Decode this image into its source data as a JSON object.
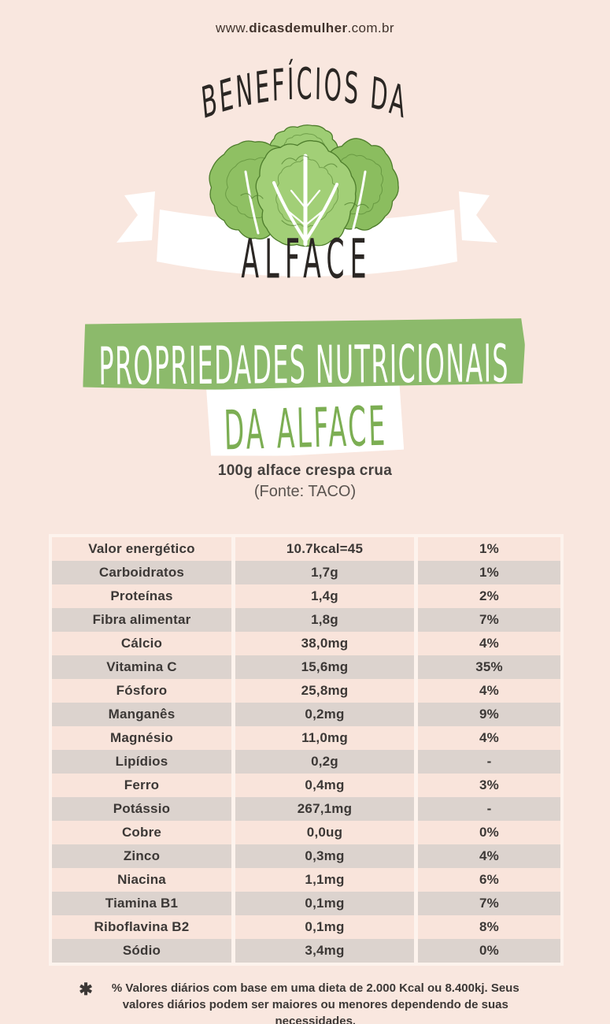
{
  "site": {
    "prefix": "www.",
    "brand": "dicasdemulher",
    "suffix": ".com.br"
  },
  "header": {
    "arc_title": "BENEFÍCIOS DA",
    "ribbon_label": "ALFACE"
  },
  "section_banner": {
    "line1": "PROPRIEDADES NUTRICIONAIS",
    "line2": "DA ALFACE"
  },
  "subtitle": {
    "portion": "100g alface crespa crua",
    "source": "(Fonte: TACO)"
  },
  "chart_data": {
    "type": "table",
    "title": "PROPRIEDADES NUTRICIONAIS DA ALFACE",
    "subtitle": "100g alface crespa crua",
    "source": "(Fonte: TACO)",
    "rows": [
      {
        "nutrient": "Valor energético",
        "amount": "10.7kcal=45",
        "daily_value": "1%"
      },
      {
        "nutrient": "Carboidratos",
        "amount": "1,7g",
        "daily_value": "1%"
      },
      {
        "nutrient": "Proteínas",
        "amount": "1,4g",
        "daily_value": "2%"
      },
      {
        "nutrient": "Fibra alimentar",
        "amount": "1,8g",
        "daily_value": "7%"
      },
      {
        "nutrient": "Cálcio",
        "amount": "38,0mg",
        "daily_value": "4%"
      },
      {
        "nutrient": "Vitamina C",
        "amount": "15,6mg",
        "daily_value": "35%"
      },
      {
        "nutrient": "Fósforo",
        "amount": "25,8mg",
        "daily_value": "4%"
      },
      {
        "nutrient": "Manganês",
        "amount": "0,2mg",
        "daily_value": "9%"
      },
      {
        "nutrient": "Magnésio",
        "amount": "11,0mg",
        "daily_value": "4%"
      },
      {
        "nutrient": "Lipídios",
        "amount": "0,2g",
        "daily_value": "-"
      },
      {
        "nutrient": "Ferro",
        "amount": "0,4mg",
        "daily_value": "3%"
      },
      {
        "nutrient": "Potássio",
        "amount": "267,1mg",
        "daily_value": "-"
      },
      {
        "nutrient": "Cobre",
        "amount": "0,0ug",
        "daily_value": "0%"
      },
      {
        "nutrient": "Zinco",
        "amount": "0,3mg",
        "daily_value": "4%"
      },
      {
        "nutrient": "Niacina",
        "amount": "1,1mg",
        "daily_value": "6%"
      },
      {
        "nutrient": "Tiamina B1",
        "amount": "0,1mg",
        "daily_value": "7%"
      },
      {
        "nutrient": "Riboflavina B2",
        "amount": "0,1mg",
        "daily_value": "8%"
      },
      {
        "nutrient": "Sódio",
        "amount": "3,4mg",
        "daily_value": "0%"
      }
    ]
  },
  "footnote": {
    "marker": "✱",
    "text": "% Valores diários com base em uma dieta de 2.000 Kcal ou 8.400kj. Seus valores diários podem ser maiores ou menores dependendo de suas necessidades."
  },
  "colors": {
    "background": "#f9e7df",
    "banner_green": "#8cba6b",
    "handwriting_green": "#7cae53",
    "ink": "#2b2724",
    "text_dark": "#3c3836",
    "row_light": "#f9e4db",
    "row_gray": "#dcd3ce",
    "table_frame": "#fdf3ed",
    "ribbon_white": "#ffffff",
    "lettuce_green": "#8fc063",
    "lettuce_dark": "#4e7d2c"
  }
}
